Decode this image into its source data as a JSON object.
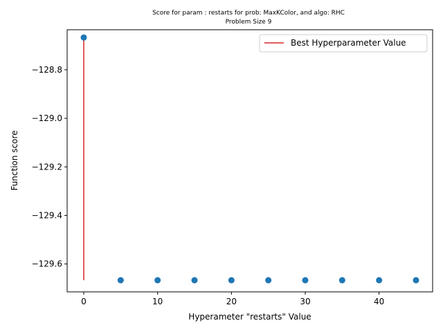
{
  "chart_data": {
    "type": "scatter",
    "title": "Score for param : restarts for prob: MaxKColor, and algo: RHC",
    "subtitle": "Problem Size 9",
    "xlabel": "Hyperameter \"restarts\" Value",
    "ylabel": "Function score",
    "xlim": [
      -2.25,
      47.25
    ],
    "ylim": [
      -129.715,
      -128.635
    ],
    "xticks": [
      0,
      10,
      20,
      30,
      40
    ],
    "yticks": [
      -128.8,
      -129.0,
      -129.2,
      -129.4,
      -129.6
    ],
    "xtick_labels": [
      "0",
      "10",
      "20",
      "30",
      "40"
    ],
    "ytick_labels": [
      "−128.8",
      "−129.0",
      "−129.2",
      "−129.4",
      "−129.6"
    ],
    "series": [
      {
        "x": [
          0,
          5,
          10,
          15,
          20,
          25,
          30,
          35,
          40,
          45
        ],
        "y": [
          -128.667,
          -129.667,
          -129.667,
          -129.667,
          -129.667,
          -129.667,
          -129.667,
          -129.667,
          -129.667,
          -129.667
        ],
        "color": "#1f77b4"
      }
    ],
    "best_line": {
      "name": "Best Hyperparameter Value",
      "x": 0,
      "y_range": [
        -129.667,
        -128.667
      ],
      "color": "#d62728"
    },
    "legend_placement": "top-right",
    "grid": false
  }
}
